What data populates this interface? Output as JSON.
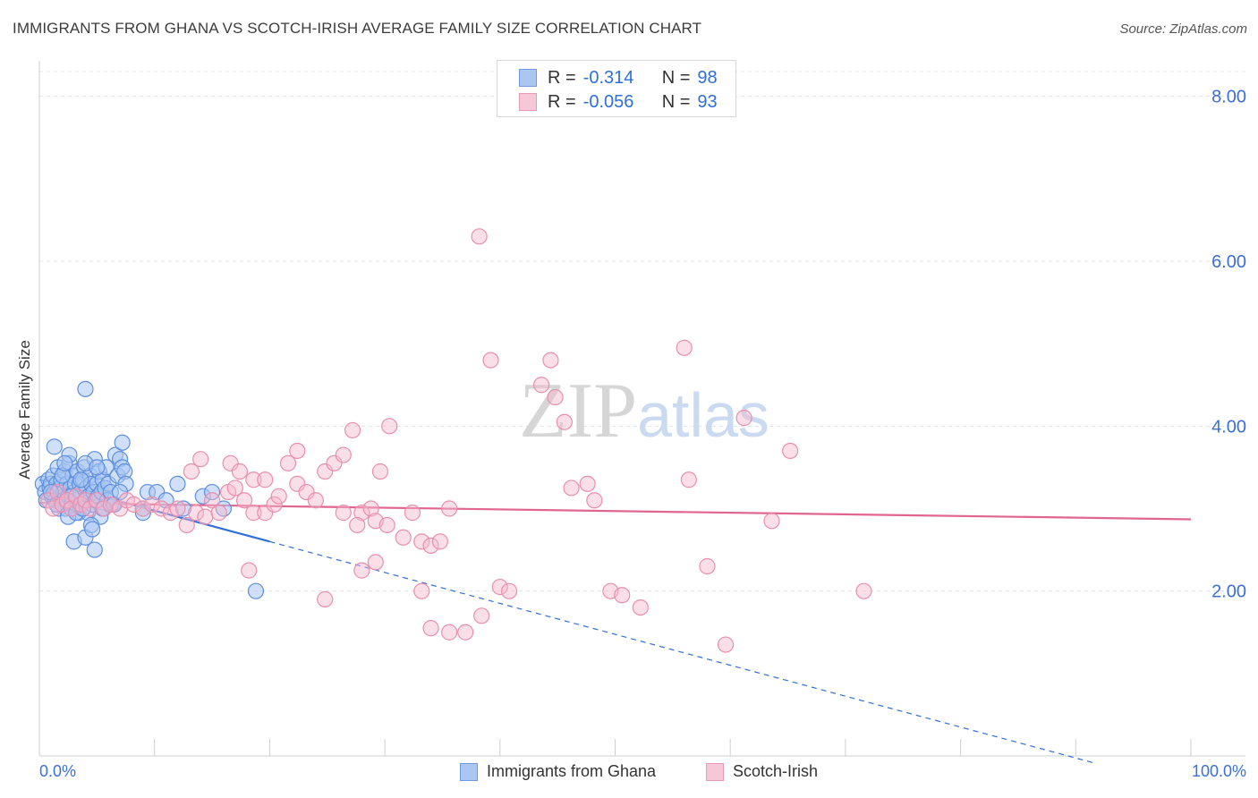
{
  "title": "IMMIGRANTS FROM GHANA VS SCOTCH-IRISH AVERAGE FAMILY SIZE CORRELATION CHART",
  "source": "Source: ZipAtlas.com",
  "watermark": "ZIPatlas",
  "colors": {
    "blue": "#2f6fdb",
    "blue_fill": "#aac7f2",
    "pink": "#e0668e",
    "pink_fill": "#f6b9cc",
    "grid": "#e3e3e3",
    "axis_text": "#3b6fd8"
  },
  "legend": {
    "rows": [
      {
        "r_label": "R =",
        "r_value": "-0.314",
        "n_label": "N =",
        "n_value": "98"
      },
      {
        "r_label": "R =",
        "r_value": "-0.056",
        "n_label": "N =",
        "n_value": "93"
      }
    ]
  },
  "bottom_legend": [
    "Immigrants from Ghana",
    "Scotch-Irish"
  ],
  "x_tick_labels": {
    "left": "0.0%",
    "right": "100.0%"
  },
  "chart_data": {
    "type": "scatter",
    "xlabel": "",
    "ylabel": "Average Family Size",
    "xlim": [
      0,
      100
    ],
    "ylim": [
      0,
      8.3
    ],
    "y_ticks": [
      2,
      4,
      6,
      8
    ],
    "y_tick_labels": [
      "2.00",
      "4.00",
      "6.00",
      "8.00"
    ],
    "grid": true,
    "legend_position": "top-center",
    "series": [
      {
        "name": "Immigrants from Ghana",
        "color": "#2f6fdb",
        "trend": {
          "x0": 0,
          "y0": 3.35,
          "x1": 20,
          "y1": 2.6,
          "dashed_to_x": 91.5
        },
        "points": [
          [
            0.3,
            3.3
          ],
          [
            0.5,
            3.2
          ],
          [
            0.6,
            3.1
          ],
          [
            0.8,
            3.35
          ],
          [
            0.9,
            3.25
          ],
          [
            1.0,
            3.3
          ],
          [
            1.1,
            3.15
          ],
          [
            1.2,
            3.4
          ],
          [
            1.3,
            3.2
          ],
          [
            1.4,
            3.1
          ],
          [
            1.5,
            3.3
          ],
          [
            1.6,
            3.5
          ],
          [
            1.7,
            3.0
          ],
          [
            1.8,
            3.25
          ],
          [
            1.9,
            3.35
          ],
          [
            2.0,
            3.1
          ],
          [
            2.1,
            3.2
          ],
          [
            2.2,
            3.45
          ],
          [
            2.3,
            3.0
          ],
          [
            2.4,
            3.3
          ],
          [
            2.5,
            3.15
          ],
          [
            2.6,
            3.55
          ],
          [
            2.7,
            3.25
          ],
          [
            2.8,
            3.05
          ],
          [
            2.9,
            3.4
          ],
          [
            3.0,
            3.2
          ],
          [
            3.1,
            3.3
          ],
          [
            3.2,
            3.1
          ],
          [
            3.3,
            3.45
          ],
          [
            3.4,
            2.95
          ],
          [
            3.5,
            3.3
          ],
          [
            3.6,
            3.2
          ],
          [
            3.7,
            3.0
          ],
          [
            3.8,
            3.35
          ],
          [
            3.9,
            3.5
          ],
          [
            4.0,
            3.1
          ],
          [
            4.1,
            3.25
          ],
          [
            4.2,
            2.95
          ],
          [
            4.3,
            3.15
          ],
          [
            4.4,
            3.4
          ],
          [
            4.5,
            3.3
          ],
          [
            4.6,
            3.05
          ],
          [
            4.7,
            3.2
          ],
          [
            4.8,
            3.6
          ],
          [
            4.9,
            3.1
          ],
          [
            5.0,
            3.3
          ],
          [
            5.1,
            3.15
          ],
          [
            5.2,
            3.45
          ],
          [
            5.3,
            2.9
          ],
          [
            5.4,
            3.2
          ],
          [
            5.5,
            3.35
          ],
          [
            5.6,
            3.0
          ],
          [
            5.7,
            3.25
          ],
          [
            5.8,
            3.5
          ],
          [
            5.9,
            3.1
          ],
          [
            6.0,
            3.3
          ],
          [
            6.2,
            3.2
          ],
          [
            6.4,
            3.05
          ],
          [
            6.6,
            3.65
          ],
          [
            6.8,
            3.4
          ],
          [
            7.0,
            3.6
          ],
          [
            7.2,
            3.5
          ],
          [
            7.4,
            3.45
          ],
          [
            1.3,
            3.75
          ],
          [
            2.6,
            3.65
          ],
          [
            4.0,
            3.55
          ],
          [
            5.0,
            3.5
          ],
          [
            4.0,
            4.45
          ],
          [
            7.2,
            3.8
          ],
          [
            7.5,
            3.3
          ],
          [
            9.0,
            3.0
          ],
          [
            9.4,
            3.2
          ],
          [
            10.2,
            3.2
          ],
          [
            11.0,
            3.1
          ],
          [
            12.0,
            3.3
          ],
          [
            12.5,
            3.0
          ],
          [
            14.2,
            3.15
          ],
          [
            15.0,
            3.2
          ],
          [
            16.0,
            3.0
          ],
          [
            9.0,
            2.95
          ],
          [
            3.0,
            2.6
          ],
          [
            4.0,
            2.65
          ],
          [
            4.5,
            2.8
          ],
          [
            4.6,
            2.75
          ],
          [
            2.5,
            2.9
          ],
          [
            3.2,
            2.95
          ],
          [
            4.8,
            2.5
          ],
          [
            5.5,
            3.0
          ],
          [
            6.5,
            3.05
          ],
          [
            7.0,
            3.2
          ],
          [
            1.0,
            3.2
          ],
          [
            1.5,
            3.05
          ],
          [
            2.0,
            3.4
          ],
          [
            2.8,
            3.15
          ],
          [
            3.6,
            3.35
          ],
          [
            18.8,
            2.0
          ],
          [
            2.2,
            3.55
          ],
          [
            3.8,
            3.0
          ]
        ]
      },
      {
        "name": "Scotch-Irish",
        "color": "#e0668e",
        "trend": {
          "x0": 0,
          "y0": 3.07,
          "x1": 100,
          "y1": 2.87
        },
        "points": [
          [
            0.8,
            3.1
          ],
          [
            1.2,
            3.0
          ],
          [
            1.6,
            3.2
          ],
          [
            2.0,
            3.05
          ],
          [
            2.4,
            3.1
          ],
          [
            2.8,
            3.0
          ],
          [
            3.2,
            3.15
          ],
          [
            3.6,
            3.05
          ],
          [
            4.0,
            3.1
          ],
          [
            4.4,
            3.0
          ],
          [
            5.0,
            3.1
          ],
          [
            5.6,
            3.0
          ],
          [
            6.2,
            3.05
          ],
          [
            7.0,
            3.0
          ],
          [
            7.6,
            3.1
          ],
          [
            8.2,
            3.05
          ],
          [
            9.0,
            3.0
          ],
          [
            9.8,
            3.05
          ],
          [
            10.6,
            3.0
          ],
          [
            11.4,
            2.95
          ],
          [
            12.0,
            3.0
          ],
          [
            12.8,
            2.8
          ],
          [
            13.6,
            2.95
          ],
          [
            14.4,
            2.9
          ],
          [
            15.0,
            3.1
          ],
          [
            15.6,
            2.95
          ],
          [
            16.4,
            3.2
          ],
          [
            17.0,
            3.25
          ],
          [
            17.8,
            3.1
          ],
          [
            18.6,
            2.95
          ],
          [
            19.6,
            2.95
          ],
          [
            20.4,
            3.05
          ],
          [
            13.2,
            3.45
          ],
          [
            14.0,
            3.6
          ],
          [
            16.6,
            3.55
          ],
          [
            17.4,
            3.45
          ],
          [
            18.6,
            3.35
          ],
          [
            19.6,
            3.35
          ],
          [
            20.8,
            3.15
          ],
          [
            21.6,
            3.55
          ],
          [
            22.4,
            3.3
          ],
          [
            23.2,
            3.2
          ],
          [
            24.0,
            3.1
          ],
          [
            24.8,
            3.45
          ],
          [
            25.6,
            3.55
          ],
          [
            26.4,
            3.65
          ],
          [
            27.2,
            3.95
          ],
          [
            28.0,
            2.95
          ],
          [
            28.8,
            3.0
          ],
          [
            29.6,
            3.45
          ],
          [
            22.4,
            3.7
          ],
          [
            30.4,
            4.0
          ],
          [
            31.6,
            2.65
          ],
          [
            32.4,
            2.95
          ],
          [
            33.2,
            2.6
          ],
          [
            34.0,
            2.55
          ],
          [
            34.8,
            2.6
          ],
          [
            35.6,
            3.0
          ],
          [
            26.4,
            2.95
          ],
          [
            27.6,
            2.8
          ],
          [
            29.2,
            2.85
          ],
          [
            30.2,
            2.8
          ],
          [
            28.0,
            2.25
          ],
          [
            29.2,
            2.35
          ],
          [
            33.2,
            2.0
          ],
          [
            34.0,
            1.55
          ],
          [
            35.6,
            1.5
          ],
          [
            37.0,
            1.5
          ],
          [
            38.4,
            1.7
          ],
          [
            39.2,
            4.8
          ],
          [
            40.0,
            2.05
          ],
          [
            40.8,
            2.0
          ],
          [
            43.6,
            4.5
          ],
          [
            44.4,
            4.8
          ],
          [
            44.8,
            4.35
          ],
          [
            45.6,
            4.05
          ],
          [
            46.2,
            3.25
          ],
          [
            47.6,
            3.3
          ],
          [
            48.2,
            3.1
          ],
          [
            49.6,
            2.0
          ],
          [
            50.6,
            1.95
          ],
          [
            52.2,
            1.8
          ],
          [
            56.0,
            4.95
          ],
          [
            56.4,
            3.35
          ],
          [
            58.0,
            2.3
          ],
          [
            59.6,
            1.35
          ],
          [
            61.2,
            4.1
          ],
          [
            63.6,
            2.85
          ],
          [
            65.2,
            3.7
          ],
          [
            71.6,
            2.0
          ],
          [
            38.2,
            6.3
          ],
          [
            18.2,
            2.25
          ],
          [
            24.8,
            1.9
          ]
        ]
      }
    ]
  }
}
